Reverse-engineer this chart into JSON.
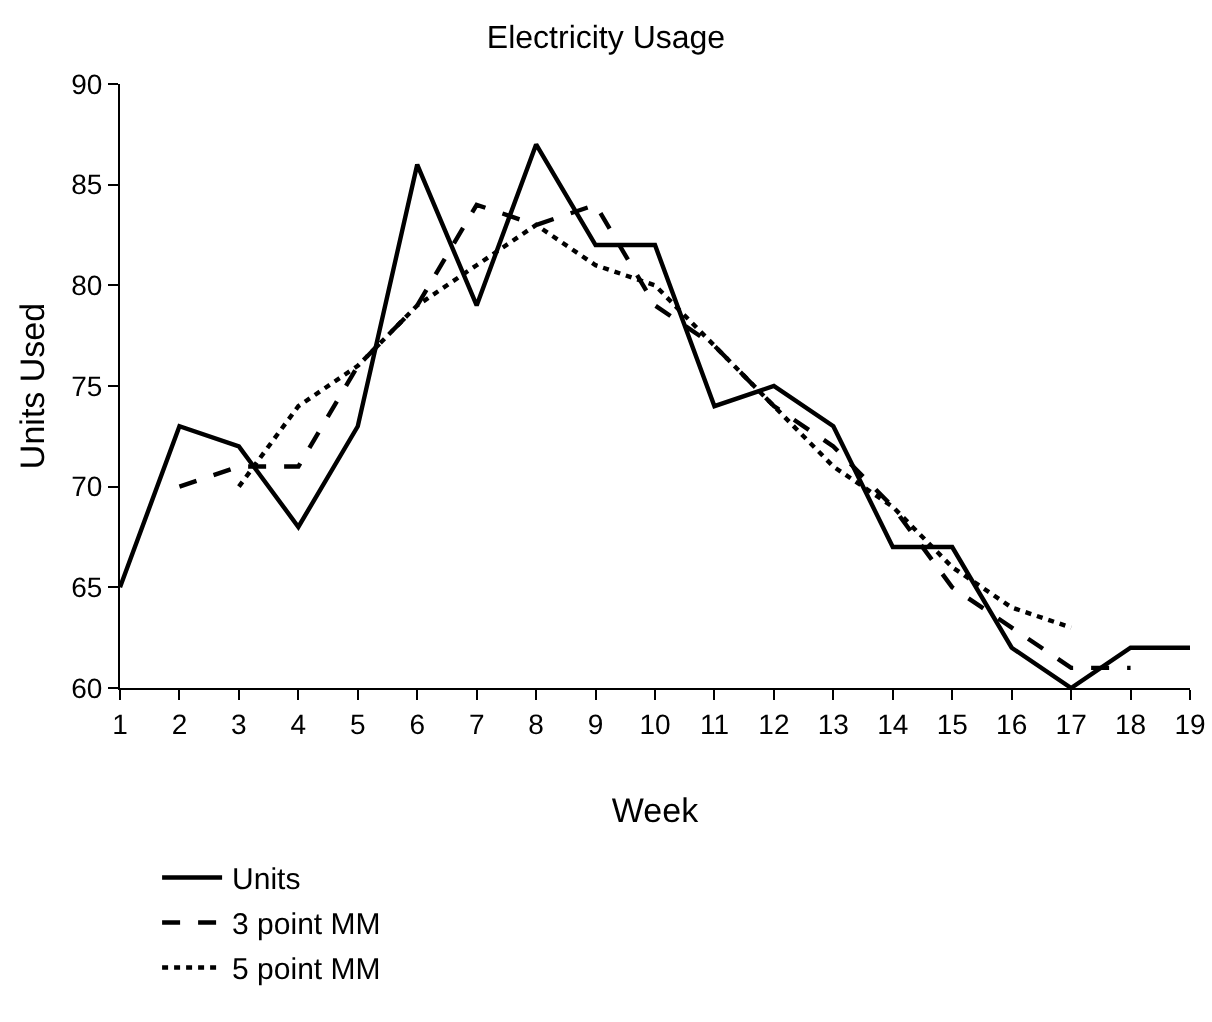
{
  "chart_data": {
    "type": "line",
    "title": "Electricity Usage",
    "xlabel": "Week",
    "ylabel": "Units Used",
    "xlim": [
      1,
      19
    ],
    "xticks": [
      1,
      2,
      3,
      4,
      5,
      6,
      7,
      8,
      9,
      10,
      11,
      12,
      13,
      14,
      15,
      16,
      17,
      18,
      19
    ],
    "ylim": [
      60,
      90
    ],
    "yticks": [
      60,
      65,
      70,
      75,
      80,
      85,
      90
    ],
    "grid": false,
    "legend": "bottom",
    "marker": "none",
    "series": [
      {
        "name": "Units",
        "color": "#000000",
        "line_style": "solid",
        "x": [
          1,
          2,
          3,
          4,
          5,
          6,
          7,
          8,
          9,
          10,
          11,
          12,
          13,
          14,
          15,
          16,
          17,
          18,
          19
        ],
        "values": [
          65,
          73,
          72,
          68,
          73,
          86,
          79,
          87,
          82,
          82,
          74,
          75,
          73,
          67,
          67,
          62,
          60,
          62,
          62
        ]
      },
      {
        "name": "3 point MM",
        "color": "#000000",
        "line_style": "dashed",
        "x": [
          2,
          3,
          4,
          5,
          6,
          7,
          8,
          9,
          10,
          11,
          12,
          13,
          14,
          15,
          16,
          17,
          18
        ],
        "values": [
          70,
          71,
          71,
          76,
          79,
          84,
          83,
          84,
          79,
          77,
          74,
          72,
          69,
          65,
          63,
          61,
          61
        ]
      },
      {
        "name": "5 point MM",
        "color": "#000000",
        "line_style": "dotted",
        "x": [
          3,
          4,
          5,
          6,
          7,
          8,
          9,
          10,
          11,
          12,
          13,
          14,
          15,
          16,
          17
        ],
        "values": [
          70,
          74,
          76,
          79,
          81,
          83,
          81,
          80,
          77,
          74,
          71,
          69,
          66,
          64,
          63
        ]
      }
    ]
  }
}
